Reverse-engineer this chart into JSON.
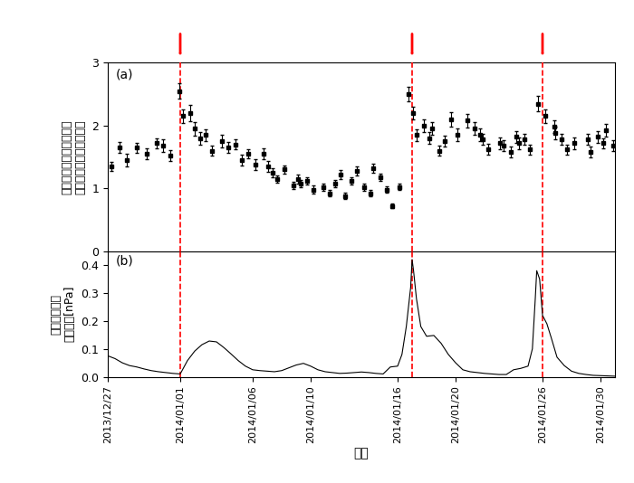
{
  "title_a": "(a)",
  "title_b": "(b)",
  "xlabel": "日付",
  "ylabel_a_line1": "イオプラズマトーラスの",
  "ylabel_a_line2": "朝夕非対称性（夕／朝）",
  "ylabel_b_line1": "太陽風の強さ",
  "ylabel_b_line2": "（動圧）[nPa]",
  "ylim_a": [
    0,
    3
  ],
  "ylim_b": [
    0,
    0.45
  ],
  "yticks_a": [
    0,
    1,
    2,
    3
  ],
  "yticks_b": [
    0,
    0.1,
    0.2,
    0.3,
    0.4
  ],
  "dashed_lines": [
    "2014-01-01",
    "2014-01-17",
    "2014-01-26"
  ],
  "arrow_dates": [
    "2014-01-01",
    "2014-01-17",
    "2014-01-26"
  ],
  "x_tick_labels": [
    "2013/12/27",
    "2014/01/01",
    "2014/01/06",
    "2014/01/10",
    "2014/01/16",
    "2014/01/20",
    "2014/01/26",
    "2014/01/30"
  ],
  "date_start": "2013-12-27",
  "date_end": "2014-01-31",
  "scatter_offsets_hours": [
    -8,
    6,
    -5,
    8,
    0,
    -7,
    9,
    -4,
    7,
    -2,
    5,
    -8,
    0,
    9,
    -6,
    4,
    -3,
    7,
    -5,
    6,
    -8,
    4,
    -6,
    2,
    9,
    -7,
    5,
    -4,
    3,
    8,
    -6,
    5,
    -3,
    7,
    -8,
    1,
    9,
    -5,
    4,
    -7,
    3,
    8,
    -4,
    6,
    -9,
    3,
    -6,
    2,
    8,
    -5,
    4,
    9,
    -3,
    6,
    -7,
    3,
    -5,
    8,
    -3,
    6,
    -8,
    2,
    7,
    -4,
    5,
    9,
    -6,
    3,
    -7,
    5,
    -3,
    8,
    -5,
    4,
    -7,
    3,
    8,
    -5,
    4,
    9,
    -3
  ],
  "scatter_dates": [
    "2013-12-27",
    "2013-12-27",
    "2013-12-28",
    "2013-12-28",
    "2013-12-29",
    "2013-12-30",
    "2013-12-30",
    "2013-12-31",
    "2013-12-31",
    "2014-01-01",
    "2014-01-01",
    "2014-01-02",
    "2014-01-02",
    "2014-01-02",
    "2014-01-03",
    "2014-01-03",
    "2014-01-04",
    "2014-01-04",
    "2014-01-05",
    "2014-01-05",
    "2014-01-06",
    "2014-01-06",
    "2014-01-07",
    "2014-01-07",
    "2014-01-07",
    "2014-01-08",
    "2014-01-08",
    "2014-01-09",
    "2014-01-09",
    "2014-01-09",
    "2014-01-10",
    "2014-01-10",
    "2014-01-11",
    "2014-01-11",
    "2014-01-12",
    "2014-01-12",
    "2014-01-12",
    "2014-01-13",
    "2014-01-13",
    "2014-01-14",
    "2014-01-14",
    "2014-01-14",
    "2014-01-15",
    "2014-01-15",
    "2014-01-16",
    "2014-01-16",
    "2014-01-17",
    "2014-01-17",
    "2014-01-17",
    "2014-01-18",
    "2014-01-18",
    "2014-01-18",
    "2014-01-19",
    "2014-01-19",
    "2014-01-20",
    "2014-01-20",
    "2014-01-21",
    "2014-01-21",
    "2014-01-22",
    "2014-01-22",
    "2014-01-22",
    "2014-01-23",
    "2014-01-23",
    "2014-01-24",
    "2014-01-24",
    "2014-01-24",
    "2014-01-25",
    "2014-01-25",
    "2014-01-26",
    "2014-01-26",
    "2014-01-27",
    "2014-01-27",
    "2014-01-27",
    "2014-01-28",
    "2014-01-28",
    "2014-01-29",
    "2014-01-29",
    "2014-01-30",
    "2014-01-30",
    "2014-01-30",
    "2014-01-31"
  ],
  "scatter_values": [
    1.55,
    1.35,
    1.65,
    1.45,
    1.65,
    1.55,
    1.72,
    1.68,
    1.52,
    2.55,
    2.15,
    2.2,
    1.95,
    1.8,
    1.85,
    1.6,
    1.75,
    1.65,
    1.7,
    1.45,
    1.55,
    1.38,
    1.55,
    1.35,
    1.25,
    1.15,
    1.3,
    1.05,
    1.15,
    1.08,
    1.12,
    0.98,
    1.02,
    0.92,
    1.08,
    1.22,
    0.88,
    1.12,
    1.28,
    1.02,
    0.92,
    1.32,
    1.18,
    0.98,
    0.72,
    1.02,
    2.5,
    2.2,
    1.85,
    2.0,
    1.8,
    1.95,
    1.6,
    1.75,
    2.1,
    1.85,
    2.08,
    1.95,
    1.78,
    1.62,
    1.85,
    1.72,
    1.68,
    1.58,
    1.82,
    1.72,
    1.78,
    1.62,
    2.35,
    2.15,
    1.88,
    1.78,
    1.98,
    1.72,
    1.62,
    1.78,
    1.58,
    1.82,
    1.72,
    1.92,
    1.68
  ],
  "scatter_errors": [
    0.08,
    0.07,
    0.09,
    0.1,
    0.08,
    0.09,
    0.08,
    0.1,
    0.09,
    0.12,
    0.11,
    0.13,
    0.11,
    0.1,
    0.09,
    0.08,
    0.1,
    0.09,
    0.08,
    0.08,
    0.07,
    0.09,
    0.09,
    0.08,
    0.07,
    0.06,
    0.07,
    0.06,
    0.07,
    0.06,
    0.06,
    0.06,
    0.06,
    0.05,
    0.06,
    0.07,
    0.05,
    0.06,
    0.07,
    0.06,
    0.05,
    0.07,
    0.06,
    0.05,
    0.04,
    0.05,
    0.12,
    0.1,
    0.09,
    0.1,
    0.09,
    0.1,
    0.08,
    0.09,
    0.11,
    0.1,
    0.11,
    0.1,
    0.09,
    0.09,
    0.1,
    0.09,
    0.09,
    0.08,
    0.09,
    0.09,
    0.09,
    0.08,
    0.12,
    0.11,
    0.1,
    0.09,
    0.1,
    0.09,
    0.08,
    0.09,
    0.08,
    0.09,
    0.08,
    0.1,
    0.09
  ],
  "sw_day_offsets": [
    0.0,
    0.5,
    1.0,
    1.5,
    2.0,
    2.5,
    3.0,
    3.5,
    4.0,
    4.5,
    5.0,
    5.5,
    6.0,
    6.5,
    7.0,
    7.5,
    8.0,
    8.5,
    9.0,
    9.5,
    10.0,
    10.5,
    11.0,
    11.5,
    12.0,
    12.5,
    13.0,
    13.5,
    14.0,
    14.5,
    15.0,
    15.5,
    16.0,
    16.5,
    17.0,
    17.5,
    18.0,
    18.5,
    19.0,
    19.5,
    20.0,
    20.3,
    20.6,
    20.9,
    21.0,
    21.1,
    21.3,
    21.6,
    22.0,
    22.5,
    23.0,
    23.5,
    24.0,
    24.5,
    25.0,
    25.5,
    26.0,
    26.5,
    27.0,
    27.5,
    28.0,
    28.5,
    29.0,
    29.3,
    29.5,
    29.6,
    29.8,
    30.0,
    30.3,
    30.6,
    31.0,
    31.5,
    32.0,
    32.5,
    33.0,
    33.5,
    34.0,
    34.5,
    35.0
  ],
  "sw_values": [
    0.075,
    0.065,
    0.05,
    0.04,
    0.035,
    0.028,
    0.022,
    0.018,
    0.015,
    0.012,
    0.01,
    0.058,
    0.092,
    0.115,
    0.128,
    0.125,
    0.105,
    0.082,
    0.058,
    0.038,
    0.025,
    0.022,
    0.02,
    0.018,
    0.022,
    0.032,
    0.042,
    0.048,
    0.038,
    0.025,
    0.018,
    0.015,
    0.012,
    0.013,
    0.015,
    0.017,
    0.015,
    0.012,
    0.01,
    0.035,
    0.038,
    0.08,
    0.18,
    0.32,
    0.42,
    0.38,
    0.28,
    0.18,
    0.145,
    0.148,
    0.12,
    0.08,
    0.05,
    0.025,
    0.018,
    0.015,
    0.012,
    0.01,
    0.008,
    0.008,
    0.025,
    0.03,
    0.038,
    0.1,
    0.28,
    0.38,
    0.35,
    0.22,
    0.19,
    0.14,
    0.07,
    0.04,
    0.02,
    0.012,
    0.008,
    0.005,
    0.004,
    0.003,
    0.002
  ]
}
